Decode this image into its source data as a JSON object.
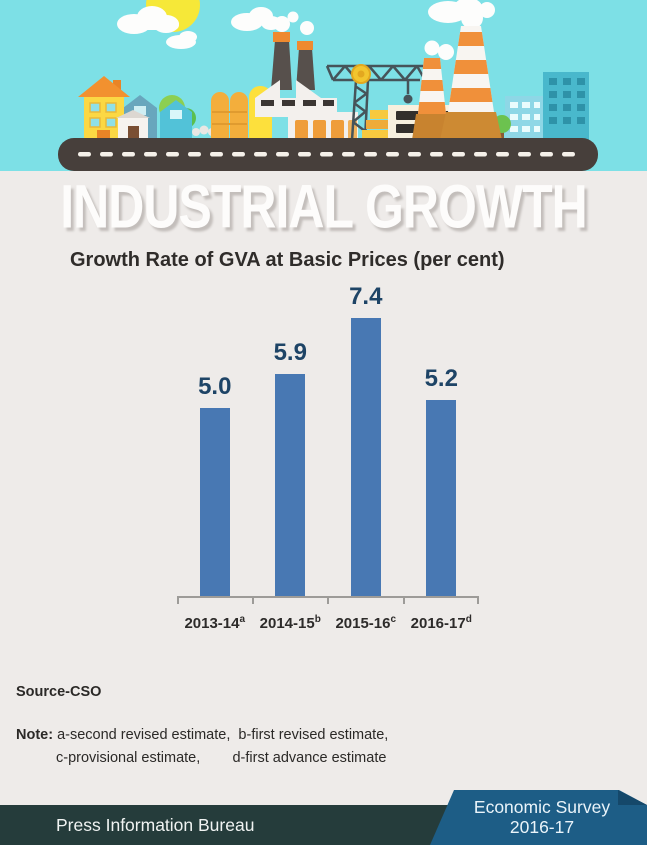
{
  "headline": "INDUSTRIAL GROWTH",
  "chart_data": {
    "type": "bar",
    "title": "Growth Rate of GVA at Basic Prices (per cent)",
    "categories": [
      {
        "year": "2013-14",
        "sup": "a"
      },
      {
        "year": "2014-15",
        "sup": "b"
      },
      {
        "year": "2015-16",
        "sup": "c"
      },
      {
        "year": "2016-17",
        "sup": "d"
      }
    ],
    "values": [
      5.0,
      5.9,
      7.4,
      5.2
    ],
    "value_labels": [
      "5.0",
      "5.9",
      "7.4",
      "5.2"
    ],
    "xlabel": "",
    "ylabel": "",
    "ylim": [
      0,
      8
    ],
    "grid": false,
    "legend": false,
    "colors": {
      "bar": "#4878b3",
      "value_label": "#1e4466",
      "axis": "#9d9b98"
    }
  },
  "source": "Source-CSO",
  "note": {
    "label": "Note:",
    "line1": " a-second revised estimate,  b-first revised estimate,",
    "line2": "c-provisional estimate,        d-first advance estimate"
  },
  "footer": {
    "left": "Press Information Bureau",
    "badge_line1": "Economic Survey",
    "badge_line2": "2016-17",
    "colors": {
      "bar": "#253c3b",
      "badge": "#1d5d86",
      "badge_fold": "#15486a"
    }
  },
  "illustration": {
    "icons": [
      "sun-icon",
      "cloud-icon",
      "smoke-icon",
      "house-icon",
      "shed-icon",
      "tree-icon",
      "silo-icon",
      "factory-icon",
      "chimney-icon",
      "striped-chimney-icon",
      "crane-icon",
      "warehouse-icon",
      "gold-blocks-icon",
      "city-building-icon",
      "conveyor-road-icon"
    ],
    "colors": {
      "sky": "#7de0e6",
      "sun": "#f6e838",
      "road": "#473f3b",
      "page_bg": "#eeebe9"
    }
  }
}
